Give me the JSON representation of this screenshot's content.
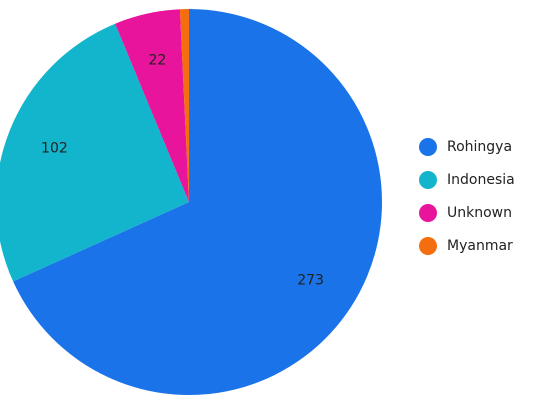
{
  "chart_data": {
    "type": "pie",
    "categories": [
      "Rohingya",
      "Indonesia",
      "Unknown",
      "Myanmar"
    ],
    "values": [
      273,
      102,
      22,
      3
    ],
    "colors": [
      "#1a73e8",
      "#12b5cb",
      "#e8149b",
      "#f46d0e"
    ],
    "legend": "right"
  }
}
